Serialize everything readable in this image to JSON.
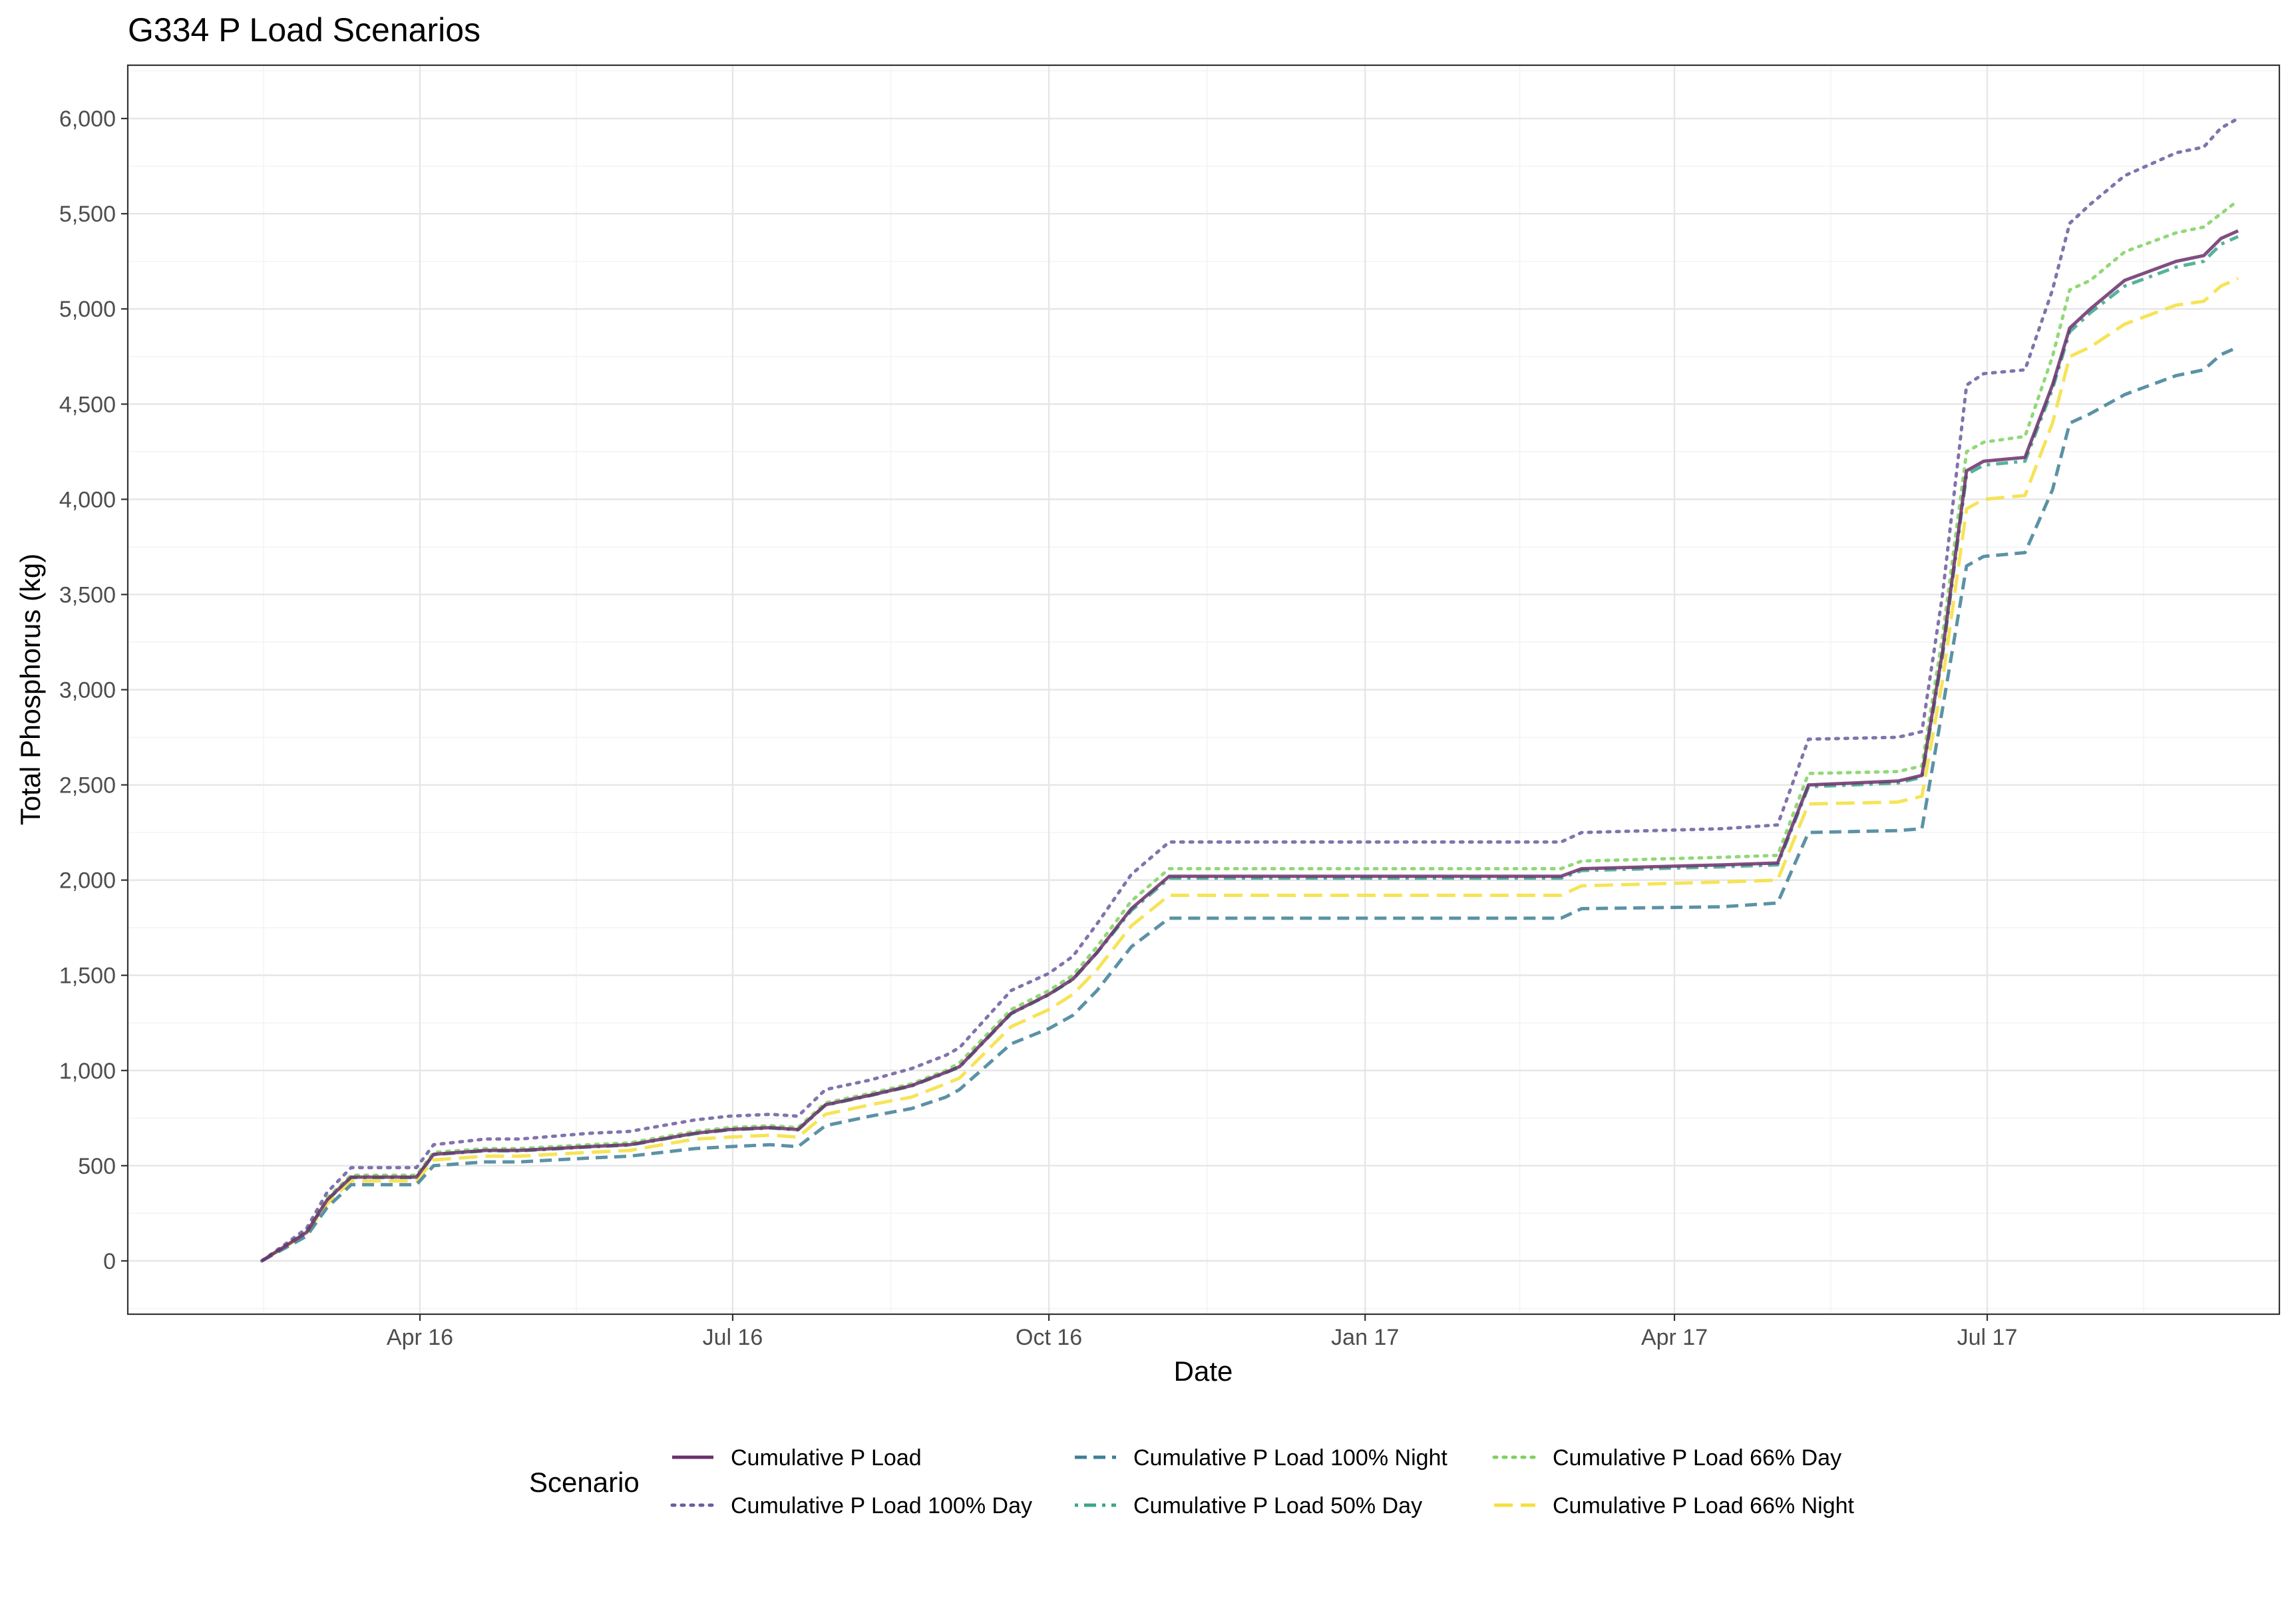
{
  "chart_data": {
    "type": "line",
    "title": "G334 P Load Scenarios",
    "xlabel": "Date",
    "ylabel": "Total Phosphorus (kg)",
    "x_axis_type": "date",
    "xlim": [
      "2016-01-07",
      "2017-09-24"
    ],
    "ylim": [
      -280,
      6280
    ],
    "x_ticks": [
      {
        "date": "2016-04-01",
        "label": "Apr 16"
      },
      {
        "date": "2016-07-01",
        "label": "Jul 16"
      },
      {
        "date": "2016-10-01",
        "label": "Oct 16"
      },
      {
        "date": "2017-01-01",
        "label": "Jan 17"
      },
      {
        "date": "2017-04-01",
        "label": "Apr 17"
      },
      {
        "date": "2017-07-01",
        "label": "Jul 17"
      }
    ],
    "y_ticks": [
      0,
      500,
      1000,
      1500,
      2000,
      2500,
      3000,
      3500,
      4000,
      4500,
      5000,
      5500,
      6000
    ],
    "y_tick_labels": [
      "0",
      "500",
      "1,000",
      "1,500",
      "2,000",
      "2,500",
      "3,000",
      "3,500",
      "4,000",
      "4,500",
      "5,000",
      "5,500",
      "6,000"
    ],
    "grid": true,
    "legend": {
      "title": "Scenario",
      "position": "bottom"
    },
    "x": [
      "2016-02-15",
      "2016-02-22",
      "2016-02-28",
      "2016-03-05",
      "2016-03-12",
      "2016-03-31",
      "2016-04-05",
      "2016-04-20",
      "2016-04-30",
      "2016-05-20",
      "2016-06-01",
      "2016-06-20",
      "2016-06-30",
      "2016-07-12",
      "2016-07-20",
      "2016-07-28",
      "2016-08-10",
      "2016-08-22",
      "2016-09-01",
      "2016-09-05",
      "2016-09-20",
      "2016-10-01",
      "2016-10-08",
      "2016-10-15",
      "2016-10-25",
      "2016-11-05",
      "2016-11-30",
      "2017-02-27",
      "2017-03-05",
      "2017-04-15",
      "2017-05-01",
      "2017-05-10",
      "2017-06-05",
      "2017-06-12",
      "2017-06-18",
      "2017-06-25",
      "2017-06-30",
      "2017-07-12",
      "2017-07-20",
      "2017-07-25",
      "2017-07-31",
      "2017-08-10",
      "2017-08-25",
      "2017-09-02",
      "2017-09-07",
      "2017-09-12"
    ],
    "series": [
      {
        "name": "Cumulative P Load",
        "color": "#6a2f6b",
        "dash": "solid",
        "values": [
          0,
          80,
          150,
          320,
          440,
          440,
          560,
          580,
          580,
          600,
          610,
          670,
          690,
          700,
          690,
          820,
          870,
          920,
          990,
          1020,
          1300,
          1400,
          1480,
          1620,
          1850,
          2020,
          2020,
          2020,
          2060,
          2080,
          2090,
          2500,
          2520,
          2550,
          3200,
          4150,
          4200,
          4220,
          4600,
          4900,
          5000,
          5150,
          5250,
          5280,
          5370,
          5410
        ]
      },
      {
        "name": "Cumulative P Load 100% Day",
        "color": "#6c5b9e",
        "dash": "dotted",
        "values": [
          0,
          90,
          170,
          360,
          490,
          490,
          610,
          640,
          640,
          670,
          680,
          740,
          760,
          770,
          760,
          900,
          950,
          1010,
          1080,
          1120,
          1420,
          1510,
          1600,
          1770,
          2030,
          2200,
          2200,
          2200,
          2250,
          2270,
          2290,
          2740,
          2750,
          2780,
          3500,
          4600,
          4660,
          4680,
          5100,
          5450,
          5550,
          5700,
          5820,
          5850,
          5950,
          6000
        ]
      },
      {
        "name": "Cumulative P Load 100% Night",
        "color": "#3e7f95",
        "dash": "dashed",
        "values": [
          0,
          70,
          130,
          280,
          400,
          400,
          500,
          520,
          520,
          540,
          550,
          590,
          600,
          610,
          600,
          710,
          760,
          800,
          860,
          900,
          1140,
          1220,
          1290,
          1420,
          1650,
          1800,
          1800,
          1800,
          1850,
          1860,
          1880,
          2250,
          2260,
          2270,
          2900,
          3650,
          3700,
          3720,
          4050,
          4400,
          4450,
          4550,
          4650,
          4680,
          4760,
          4800
        ]
      },
      {
        "name": "Cumulative P Load 50% Day",
        "color": "#3aa58a",
        "dash": "dashdot",
        "values": [
          0,
          80,
          148,
          318,
          438,
          438,
          558,
          578,
          578,
          598,
          608,
          668,
          688,
          698,
          688,
          818,
          868,
          918,
          988,
          1018,
          1298,
          1398,
          1478,
          1618,
          1840,
          2010,
          2010,
          2010,
          2050,
          2070,
          2080,
          2490,
          2510,
          2540,
          3180,
          4130,
          4180,
          4200,
          4580,
          4880,
          4980,
          5120,
          5220,
          5250,
          5340,
          5380
        ]
      },
      {
        "name": "Cumulative P Load 66% Day",
        "color": "#7fd160",
        "dash": "dotted",
        "values": [
          0,
          82,
          155,
          330,
          450,
          450,
          570,
          590,
          590,
          610,
          620,
          680,
          700,
          710,
          700,
          830,
          880,
          930,
          1000,
          1040,
          1320,
          1420,
          1500,
          1650,
          1890,
          2060,
          2060,
          2060,
          2100,
          2120,
          2130,
          2560,
          2570,
          2600,
          3280,
          4250,
          4300,
          4330,
          4750,
          5100,
          5150,
          5300,
          5400,
          5430,
          5500,
          5570
        ]
      },
      {
        "name": "Cumulative P Load 66% Night",
        "color": "#f5df3b",
        "dash": "longdash",
        "values": [
          0,
          76,
          142,
          300,
          420,
          420,
          530,
          550,
          550,
          570,
          580,
          640,
          650,
          660,
          650,
          770,
          820,
          860,
          930,
          960,
          1230,
          1320,
          1400,
          1530,
          1760,
          1920,
          1920,
          1920,
          1970,
          1990,
          2000,
          2400,
          2410,
          2440,
          3050,
          3950,
          4000,
          4020,
          4400,
          4750,
          4800,
          4920,
          5020,
          5040,
          5120,
          5160
        ]
      }
    ]
  }
}
